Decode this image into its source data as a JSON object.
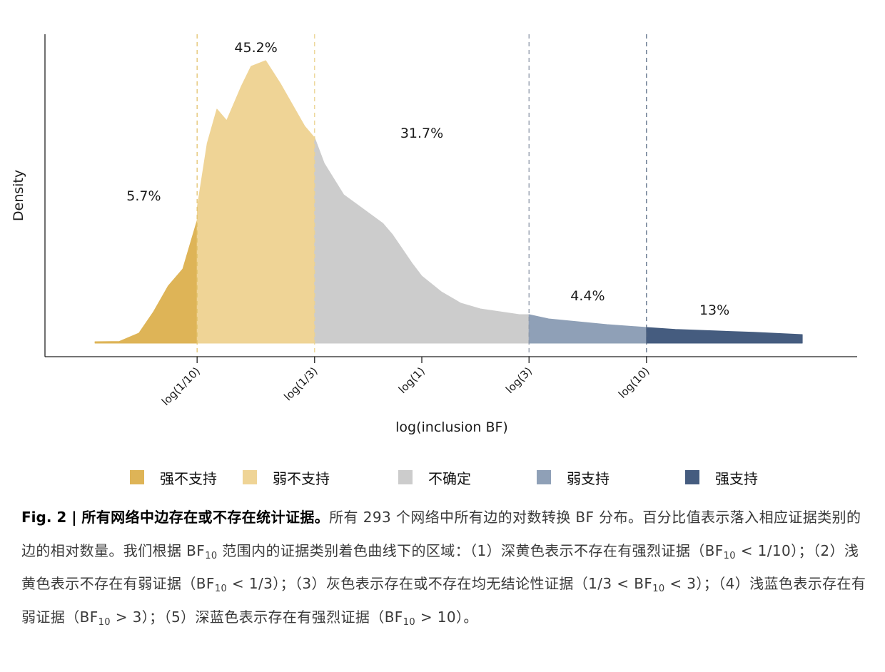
{
  "chart_data": {
    "type": "area",
    "title": "",
    "xlabel": "log(inclusion BF)",
    "ylabel": "Density",
    "x_ticks": [
      "log(1/10)",
      "log(1/3)",
      "log(1)",
      "log(3)",
      "log(10)"
    ],
    "x_tick_values": [
      -2.303,
      -1.099,
      0,
      1.099,
      2.303
    ],
    "xlim": [
      -3.4,
      4.0
    ],
    "ylim": [
      0,
      1.0
    ],
    "grid": false,
    "legend_position": "bottom",
    "density_curve": {
      "x": [
        -3.35,
        -3.1,
        -2.9,
        -2.75,
        -2.6,
        -2.45,
        -2.303,
        -2.3,
        -2.2,
        -2.1,
        -2.0,
        -1.85,
        -1.75,
        -1.6,
        -1.45,
        -1.3,
        -1.2,
        -1.1,
        -1.099,
        -1.0,
        -0.8,
        -0.6,
        -0.4,
        -0.3,
        -0.2,
        -0.1,
        0.0,
        0.2,
        0.4,
        0.6,
        0.8,
        1.0,
        1.099,
        1.3,
        1.6,
        1.9,
        2.303,
        2.6,
        3.0,
        3.4,
        3.9
      ],
      "y": [
        0.005,
        0.006,
        0.035,
        0.11,
        0.2,
        0.26,
        0.43,
        0.48,
        0.7,
        0.82,
        0.78,
        0.9,
        0.97,
        0.99,
        0.91,
        0.82,
        0.76,
        0.72,
        0.72,
        0.63,
        0.52,
        0.47,
        0.42,
        0.38,
        0.33,
        0.28,
        0.235,
        0.18,
        0.14,
        0.12,
        0.11,
        0.1,
        0.1,
        0.085,
        0.075,
        0.065,
        0.055,
        0.048,
        0.043,
        0.038,
        0.03
      ]
    },
    "series": [
      {
        "name": "强不支持",
        "color": "#DEB457",
        "x_range": [
          -3.35,
          -2.303
        ],
        "label": "5.7%",
        "label_x": -2.85,
        "label_y": 0.5
      },
      {
        "name": "弱不支持",
        "color": "#EFD496",
        "x_range": [
          -2.303,
          -1.099
        ],
        "label": "45.2%",
        "label_x": -1.7,
        "label_y": 1.02
      },
      {
        "name": "不确定",
        "color": "#CCCCCC",
        "x_range": [
          -1.099,
          1.099
        ],
        "label": "31.7%",
        "label_x": 0.0,
        "label_y": 0.72
      },
      {
        "name": "弱支持",
        "color": "#8FA0B7",
        "x_range": [
          1.099,
          2.303
        ],
        "label": "4.4%",
        "label_x": 1.7,
        "label_y": 0.15
      },
      {
        "name": "强支持",
        "color": "#455C7F",
        "x_range": [
          2.303,
          3.9
        ],
        "label": "13%",
        "label_x": 3.0,
        "label_y": 0.1
      }
    ],
    "threshold_lines": [
      {
        "x": -2.303,
        "color": "#E3C36E"
      },
      {
        "x": -1.099,
        "color": "#EBD390"
      },
      {
        "x": 1.099,
        "color": "#8D97A8"
      },
      {
        "x": 2.303,
        "color": "#5B6D87"
      }
    ]
  },
  "caption": {
    "fig_label": "Fig. 2 |",
    "title": "所有网络中边存在或不存在统计证据。",
    "part1": "所有 293 个网络中所有边的对数转换 BF 分布。百分比值表示落入相应证据类别的边的相对数量。我们根据 BF",
    "part2": " 范围内的证据类别着色曲线下的区域：（1）深黄色表示不存在有强烈证据（BF",
    "part3": " < 1/10）；（2）浅黄色表示不存在有弱证据（BF",
    "part4": " < 1/3）；（3）灰色表示存在或不存在均无结论性证据（1/3 < BF",
    "part5": " < 3）；（4）浅蓝色表示存在有弱证据（BF",
    "part6": " > 3）；（5）深蓝色表示存在有强烈证据（BF",
    "part7": " > 10）。",
    "sub": "10"
  }
}
